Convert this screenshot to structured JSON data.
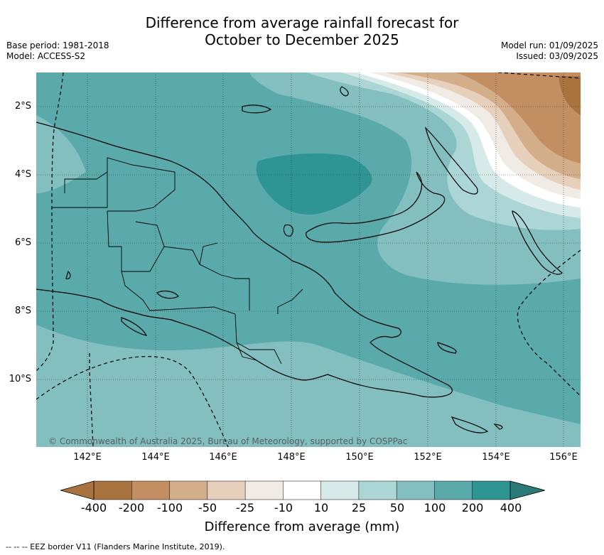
{
  "title": {
    "line1": "Difference from average rainfall forecast for",
    "line2": "October to December 2025"
  },
  "meta_left": {
    "base_period": "Base period: 1981-2018",
    "model": "Model: ACCESS-S2"
  },
  "meta_right": {
    "model_run": "Model run: 01/09/2025",
    "issued": "Issued: 03/09/2025"
  },
  "map": {
    "latitude_ticks": [
      "2°S",
      "4°S",
      "6°S",
      "8°S",
      "10°S"
    ],
    "longitude_ticks": [
      "142°E",
      "144°E",
      "146°E",
      "148°E",
      "150°E",
      "152°E",
      "154°E",
      "156°E"
    ],
    "copyright": "© Commonwealth of Australia 2025, Bureau of Meteorology, supported by COSPPac"
  },
  "colorbar": {
    "title": "Difference from average (mm)",
    "labels": [
      "-400",
      "-200",
      "-100",
      "-50",
      "-25",
      "-10",
      "10",
      "25",
      "50",
      "100",
      "200",
      "400"
    ],
    "colors": [
      "#a97340",
      "#c38f62",
      "#d4ae8b",
      "#e6cfbb",
      "#f1ebe6",
      "#ffffff",
      "#d5eae9",
      "#acd5d5",
      "#83bfc0",
      "#5aaaab",
      "#2e9593"
    ],
    "extend_low_color": "#a97340",
    "extend_high_color": "#2a7a78"
  },
  "footnote": "--  --  -- EEZ border V11 (Flanders Marine Institute, 2019)."
}
